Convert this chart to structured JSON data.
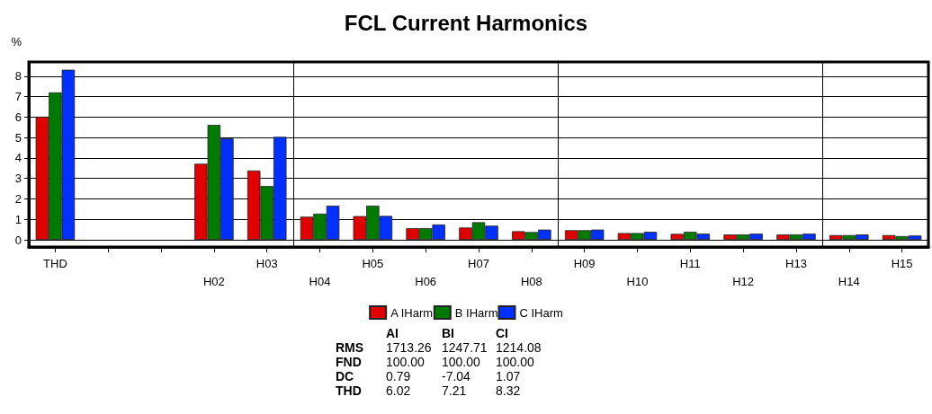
{
  "chart_data": {
    "type": "bar",
    "title": "FCL Current Harmonics",
    "ylabel": "%",
    "categories": [
      "THD",
      null,
      null,
      "H02",
      "H03",
      "H04",
      "H05",
      "H06",
      "H07",
      "H08",
      "H09",
      "H10",
      "H11",
      "H12",
      "H13",
      "H14",
      "H15"
    ],
    "series": [
      {
        "name": "A IHarm",
        "color": "#e00000",
        "values": [
          6.02,
          null,
          null,
          3.72,
          3.39,
          1.13,
          1.16,
          0.57,
          0.6,
          0.42,
          0.47,
          0.33,
          0.29,
          0.26,
          0.26,
          0.23,
          0.23
        ]
      },
      {
        "name": "B IHarm",
        "color": "#007a00",
        "values": [
          7.21,
          null,
          null,
          5.62,
          2.63,
          1.28,
          1.67,
          0.57,
          0.86,
          0.38,
          0.47,
          0.33,
          0.39,
          0.26,
          0.26,
          0.23,
          0.18
        ]
      },
      {
        "name": "C IHarm",
        "color": "#0030ff",
        "values": [
          8.32,
          null,
          null,
          4.96,
          5.04,
          1.67,
          1.17,
          0.75,
          0.69,
          0.5,
          0.5,
          0.39,
          0.3,
          0.3,
          0.3,
          0.26,
          0.21
        ]
      }
    ],
    "ylim": [
      -0.35,
      8.7
    ],
    "yticks": [
      0,
      1,
      2,
      3,
      4,
      5,
      6,
      7,
      8
    ],
    "grid": true,
    "legend": "bottom",
    "annotations": [
      "AI",
      "BI",
      "CI",
      "RMS",
      "1713.26",
      "1247.71",
      "1214.08",
      "FND",
      "100.00",
      "100.00",
      "100.00",
      "DC",
      "0.79",
      "-7.04",
      "1.07",
      "THD",
      "6.02",
      "7.21",
      "8.32"
    ]
  }
}
